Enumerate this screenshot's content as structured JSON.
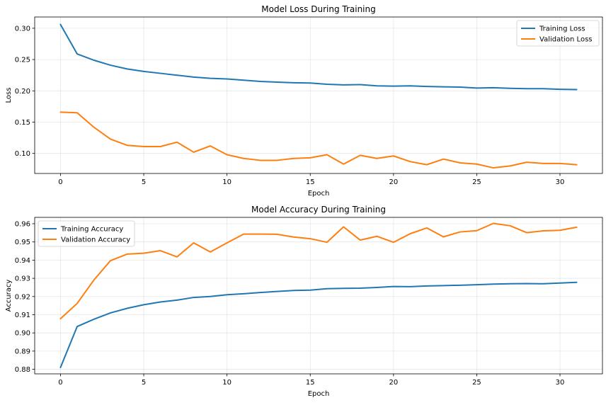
{
  "chart_data": [
    {
      "type": "line",
      "title": "Model Loss During Training",
      "xlabel": "Epoch",
      "ylabel": "Loss",
      "xlim": [
        -1.55,
        32.55
      ],
      "ylim": [
        0.068,
        0.318
      ],
      "xticks": [
        0,
        5,
        10,
        15,
        20,
        25,
        30
      ],
      "xtick_labels": [
        "0",
        "5",
        "10",
        "15",
        "20",
        "25",
        "30"
      ],
      "yticks": [
        0.1,
        0.15,
        0.2,
        0.25,
        0.3
      ],
      "ytick_labels": [
        "0.10",
        "0.15",
        "0.20",
        "0.25",
        "0.30"
      ],
      "grid": true,
      "legend_position": "top-right",
      "x": [
        0,
        1,
        2,
        3,
        4,
        5,
        6,
        7,
        8,
        9,
        10,
        11,
        12,
        13,
        14,
        15,
        16,
        17,
        18,
        19,
        20,
        21,
        22,
        23,
        24,
        25,
        26,
        27,
        28,
        29,
        30,
        31
      ],
      "series": [
        {
          "name": "Training Loss",
          "color": "#1f77b4",
          "values": [
            0.306,
            0.259,
            0.249,
            0.241,
            0.235,
            0.231,
            0.228,
            0.225,
            0.222,
            0.22,
            0.219,
            0.217,
            0.215,
            0.214,
            0.213,
            0.2125,
            0.2105,
            0.2095,
            0.21,
            0.208,
            0.2075,
            0.208,
            0.207,
            0.2065,
            0.206,
            0.2045,
            0.205,
            0.204,
            0.2035,
            0.2035,
            0.2025,
            0.202
          ]
        },
        {
          "name": "Validation Loss",
          "color": "#ff7f0e",
          "values": [
            0.166,
            0.165,
            0.142,
            0.123,
            0.113,
            0.111,
            0.111,
            0.118,
            0.102,
            0.112,
            0.098,
            0.092,
            0.089,
            0.089,
            0.092,
            0.093,
            0.098,
            0.083,
            0.097,
            0.092,
            0.096,
            0.087,
            0.082,
            0.091,
            0.085,
            0.083,
            0.077,
            0.08,
            0.086,
            0.084,
            0.084,
            0.082
          ]
        }
      ]
    },
    {
      "type": "line",
      "title": "Model Accuracy During Training",
      "xlabel": "Epoch",
      "ylabel": "Accuracy",
      "xlim": [
        -1.55,
        32.55
      ],
      "ylim": [
        0.8775,
        0.9635
      ],
      "xticks": [
        0,
        5,
        10,
        15,
        20,
        25,
        30
      ],
      "xtick_labels": [
        "0",
        "5",
        "10",
        "15",
        "20",
        "25",
        "30"
      ],
      "yticks": [
        0.88,
        0.89,
        0.9,
        0.91,
        0.92,
        0.93,
        0.94,
        0.95,
        0.96
      ],
      "ytick_labels": [
        "0.88",
        "0.89",
        "0.90",
        "0.91",
        "0.92",
        "0.93",
        "0.94",
        "0.95",
        "0.96"
      ],
      "grid": true,
      "legend_position": "top-left",
      "x": [
        0,
        1,
        2,
        3,
        4,
        5,
        6,
        7,
        8,
        9,
        10,
        11,
        12,
        13,
        14,
        15,
        16,
        17,
        18,
        19,
        20,
        21,
        22,
        23,
        24,
        25,
        26,
        27,
        28,
        29,
        30,
        31
      ],
      "series": [
        {
          "name": "Training Accuracy",
          "color": "#1f77b4",
          "values": [
            0.881,
            0.9035,
            0.9075,
            0.911,
            0.9135,
            0.9155,
            0.917,
            0.918,
            0.9195,
            0.92,
            0.921,
            0.9215,
            0.9222,
            0.9228,
            0.9233,
            0.9235,
            0.9243,
            0.9245,
            0.9246,
            0.925,
            0.9255,
            0.9254,
            0.9258,
            0.926,
            0.9262,
            0.9265,
            0.9268,
            0.927,
            0.9271,
            0.927,
            0.9274,
            0.9278
          ]
        },
        {
          "name": "Validation Accuracy",
          "color": "#ff7f0e",
          "values": [
            0.9078,
            0.9162,
            0.929,
            0.9397,
            0.9433,
            0.9438,
            0.9452,
            0.9418,
            0.9495,
            0.9445,
            0.9495,
            0.9543,
            0.9543,
            0.9542,
            0.9527,
            0.9518,
            0.9498,
            0.9583,
            0.951,
            0.9531,
            0.9498,
            0.9545,
            0.9577,
            0.9528,
            0.9555,
            0.9562,
            0.9602,
            0.9589,
            0.9551,
            0.9561,
            0.9564,
            0.9581
          ]
        }
      ]
    }
  ]
}
